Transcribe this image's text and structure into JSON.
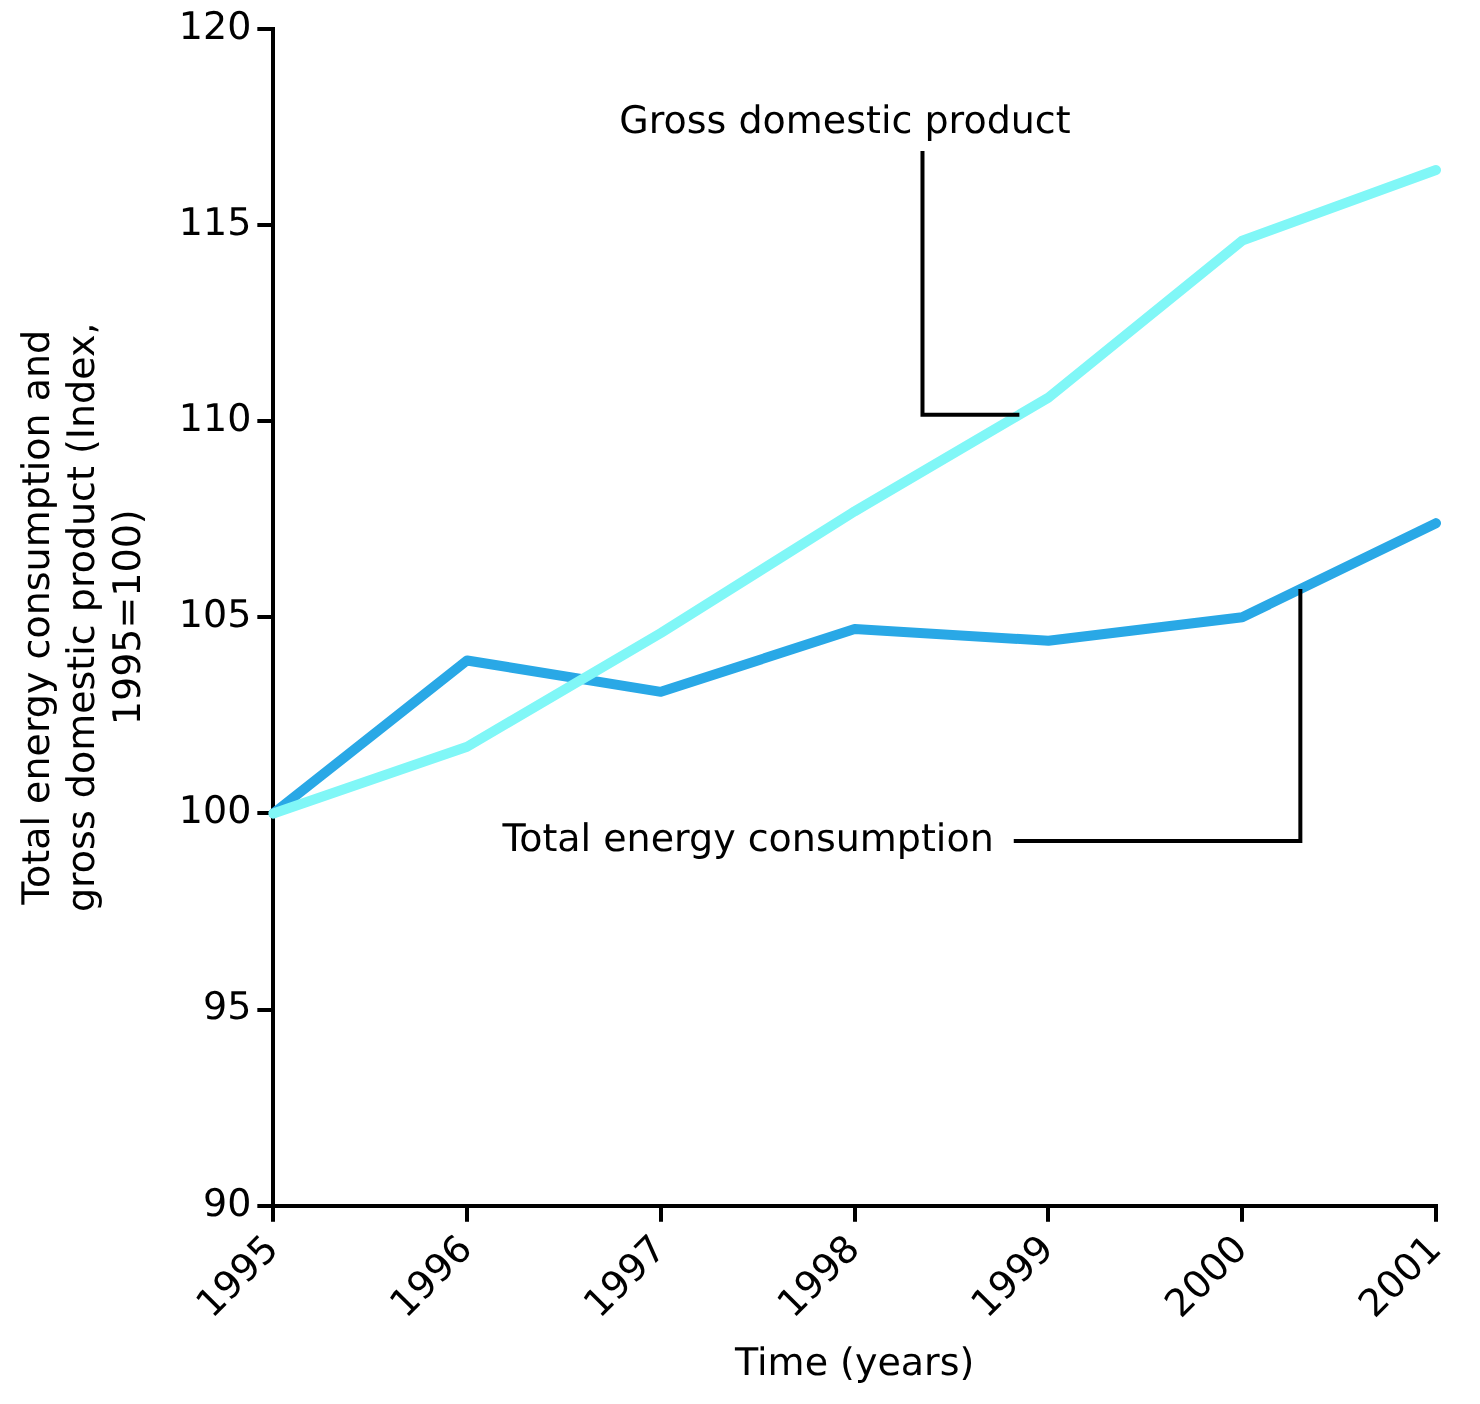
{
  "chart_data": {
    "type": "line",
    "xlabel": "Time (years)",
    "ylabel": "Total energy consumption and gross domestic product (Index, 1995=100)",
    "categories": [
      "1995",
      "1996",
      "1997",
      "1998",
      "1999",
      "2000",
      "2001"
    ],
    "series": [
      {
        "name": "Gross domestic product",
        "color": "#80f7f7",
        "values": [
          100,
          101.7,
          104.6,
          107.7,
          110.6,
          114.6,
          116.4
        ]
      },
      {
        "name": "Total energy consumption",
        "color": "#29a8e6",
        "values": [
          100,
          103.9,
          103.1,
          104.7,
          104.4,
          105.0,
          107.4
        ]
      }
    ],
    "ylim": [
      90,
      120
    ],
    "yticks": [
      90,
      95,
      100,
      105,
      110,
      115,
      120
    ],
    "grid": false,
    "legend": false,
    "marker": "none",
    "line_style": "solid"
  }
}
